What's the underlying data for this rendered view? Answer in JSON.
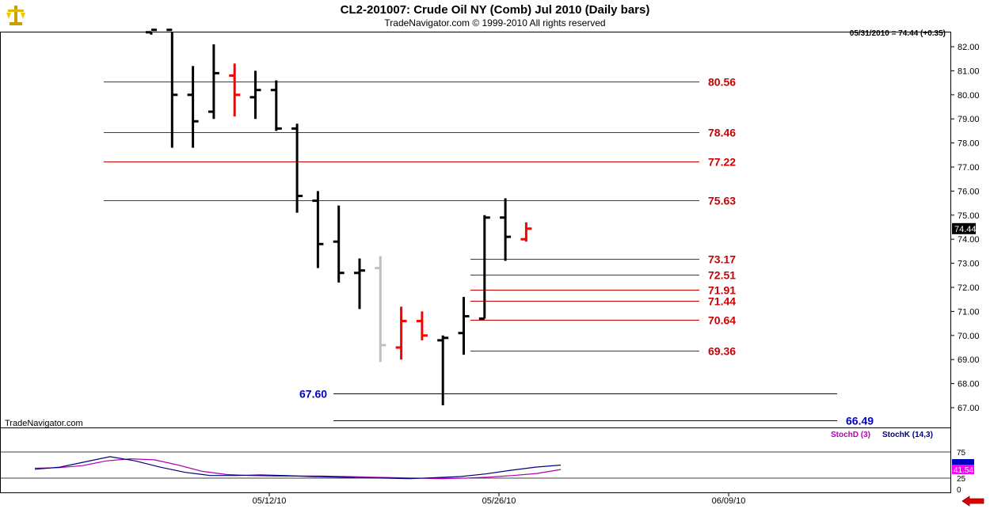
{
  "title": "CL2-201007:  Crude Oil NY (Comb) Jul 2010  (Daily bars)",
  "subtitle": "TradeNavigator.com © 1999-2010 All rights reserved",
  "last_info": "05/31/2010 = 74.44 (+0.35)",
  "brand": "TradeNavigator.com",
  "indicator": {
    "stoch_d_label": "StochD (3)",
    "stoch_k_label": "StochK (14,3)",
    "stoch_d_value": "41.54",
    "stoch_d_value_color": "#ff00ff",
    "stoch_k_value_color": "#0000c0",
    "y_ticks": [
      "75",
      "25",
      "0"
    ],
    "levels": [
      75,
      25
    ]
  },
  "colors": {
    "up_bar": "#000000",
    "down_bar": "#ff0000",
    "neutral_bar": "#c0c0c0",
    "resistance_line": "#cc0000",
    "support_line": "#000080",
    "resistance_label": "#cc0000",
    "support_label": "#0000cc",
    "stoch_d": "#b000b0",
    "stoch_k": "#000080"
  },
  "chart_data": {
    "type": "ohlc",
    "x_labels": [
      "05/12/10",
      "05/26/10",
      "06/09/10"
    ],
    "ylim": [
      66.5,
      82.5
    ],
    "y_ticks": [
      "82.00",
      "81.00",
      "80.00",
      "79.00",
      "78.00",
      "77.00",
      "76.00",
      "75.00",
      "74.00",
      "73.00",
      "72.00",
      "71.00",
      "70.00",
      "69.00",
      "68.00",
      "67.00"
    ],
    "last_price_label": "74.44",
    "last_price": 74.44,
    "bars": [
      {
        "i": 0,
        "o": 82.6,
        "h": 82.8,
        "l": 82.5,
        "c": 82.7,
        "col": "up"
      },
      {
        "i": 1,
        "o": 82.7,
        "h": 82.7,
        "l": 77.8,
        "c": 80.0,
        "col": "up"
      },
      {
        "i": 2,
        "o": 80.0,
        "h": 81.2,
        "l": 77.8,
        "c": 78.9,
        "col": "up"
      },
      {
        "i": 3,
        "o": 79.3,
        "h": 82.1,
        "l": 79.0,
        "c": 80.9,
        "col": "up"
      },
      {
        "i": 4,
        "o": 80.8,
        "h": 81.3,
        "l": 79.1,
        "c": 80.0,
        "col": "down"
      },
      {
        "i": 5,
        "o": 79.9,
        "h": 81.0,
        "l": 79.0,
        "c": 80.2,
        "col": "up"
      },
      {
        "i": 6,
        "o": 80.2,
        "h": 80.6,
        "l": 78.5,
        "c": 78.6,
        "col": "up"
      },
      {
        "i": 7,
        "o": 78.6,
        "h": 78.8,
        "l": 75.1,
        "c": 75.8,
        "col": "up"
      },
      {
        "i": 8,
        "o": 75.6,
        "h": 76.0,
        "l": 72.8,
        "c": 73.8,
        "col": "up"
      },
      {
        "i": 9,
        "o": 73.9,
        "h": 75.4,
        "l": 72.2,
        "c": 72.6,
        "col": "up"
      },
      {
        "i": 10,
        "o": 72.6,
        "h": 73.2,
        "l": 71.1,
        "c": 72.7,
        "col": "up"
      },
      {
        "i": 11,
        "o": 72.8,
        "h": 73.3,
        "l": 68.9,
        "c": 69.6,
        "col": "neutral"
      },
      {
        "i": 12,
        "o": 69.5,
        "h": 71.2,
        "l": 69.0,
        "c": 70.6,
        "col": "down"
      },
      {
        "i": 13,
        "o": 70.6,
        "h": 71.0,
        "l": 69.8,
        "c": 70.0,
        "col": "down"
      },
      {
        "i": 14,
        "o": 69.8,
        "h": 70.0,
        "l": 67.1,
        "c": 69.9,
        "col": "up"
      },
      {
        "i": 15,
        "o": 70.1,
        "h": 71.6,
        "l": 69.2,
        "c": 70.8,
        "col": "up"
      },
      {
        "i": 16,
        "o": 70.7,
        "h": 75.0,
        "l": 70.7,
        "c": 74.9,
        "col": "up"
      },
      {
        "i": 17,
        "o": 74.9,
        "h": 75.7,
        "l": 73.1,
        "c": 74.1,
        "col": "up"
      },
      {
        "i": 18,
        "o": 74.0,
        "h": 74.7,
        "l": 73.9,
        "c": 74.44,
        "col": "down"
      }
    ],
    "resistance_levels": [
      {
        "label": "80.56",
        "price": 80.56,
        "x0": 131,
        "x1": 883
      },
      {
        "label": "78.46",
        "price": 78.46,
        "x0": 131,
        "x1": 883
      },
      {
        "label": "77.22",
        "price": 77.22,
        "x0": 131,
        "x1": 883
      },
      {
        "label": "75.63",
        "price": 75.63,
        "x0": 131,
        "x1": 883
      },
      {
        "label": "73.17",
        "price": 73.17,
        "x0": 594,
        "x1": 883
      },
      {
        "label": "72.51",
        "price": 72.51,
        "x0": 594,
        "x1": 883
      },
      {
        "label": "71.91",
        "price": 71.91,
        "x0": 594,
        "x1": 883
      },
      {
        "label": "71.44",
        "price": 71.44,
        "x0": 594,
        "x1": 883
      },
      {
        "label": "70.64",
        "price": 70.64,
        "x0": 594,
        "x1": 883
      },
      {
        "label": "69.36",
        "price": 69.36,
        "x0": 594,
        "x1": 883
      }
    ],
    "support_levels": [
      {
        "label": "67.60",
        "price": 67.6,
        "side": "left"
      },
      {
        "label": "66.49",
        "price": 66.49,
        "side": "right"
      }
    ],
    "stoch_d": [
      44,
      45,
      49,
      58,
      62,
      60,
      50,
      38,
      32,
      30,
      29,
      29,
      29,
      28,
      27,
      26,
      25,
      24,
      25,
      27,
      30,
      34,
      41.54
    ],
    "stoch_k": [
      42,
      46,
      56,
      66,
      58,
      46,
      36,
      30,
      30,
      31,
      30,
      28,
      27,
      26,
      25,
      24,
      26,
      28,
      33,
      40,
      46,
      50
    ]
  }
}
